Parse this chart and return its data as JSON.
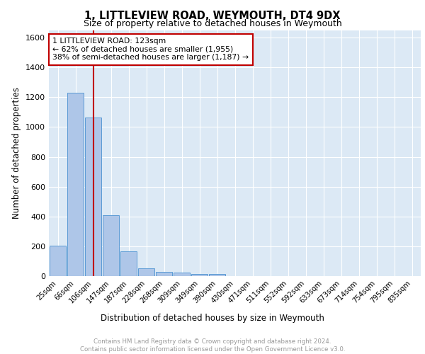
{
  "title1": "1, LITTLEVIEW ROAD, WEYMOUTH, DT4 9DX",
  "title2": "Size of property relative to detached houses in Weymouth",
  "xlabel": "Distribution of detached houses by size in Weymouth",
  "ylabel": "Number of detached properties",
  "bin_labels": [
    "25sqm",
    "66sqm",
    "106sqm",
    "147sqm",
    "187sqm",
    "228sqm",
    "268sqm",
    "309sqm",
    "349sqm",
    "390sqm",
    "430sqm",
    "471sqm",
    "511sqm",
    "552sqm",
    "592sqm",
    "633sqm",
    "673sqm",
    "714sqm",
    "754sqm",
    "795sqm",
    "835sqm"
  ],
  "bin_values": [
    205,
    1230,
    1065,
    410,
    165,
    50,
    28,
    22,
    15,
    15,
    0,
    0,
    0,
    0,
    0,
    0,
    0,
    0,
    0,
    0,
    0
  ],
  "bar_color": "#aec6e8",
  "bar_edge_color": "#5b9bd5",
  "property_bin_index": 2,
  "vline_color": "#c00000",
  "annotation_text": "1 LITTLEVIEW ROAD: 123sqm\n← 62% of detached houses are smaller (1,955)\n38% of semi-detached houses are larger (1,187) →",
  "annotation_box_color": "white",
  "annotation_box_edge_color": "#c00000",
  "ylim": [
    0,
    1650
  ],
  "yticks": [
    0,
    200,
    400,
    600,
    800,
    1000,
    1200,
    1400,
    1600
  ],
  "footer_text": "Contains HM Land Registry data © Crown copyright and database right 2024.\nContains public sector information licensed under the Open Government Licence v3.0.",
  "background_color": "#dce9f5",
  "fig_background": "#ffffff"
}
